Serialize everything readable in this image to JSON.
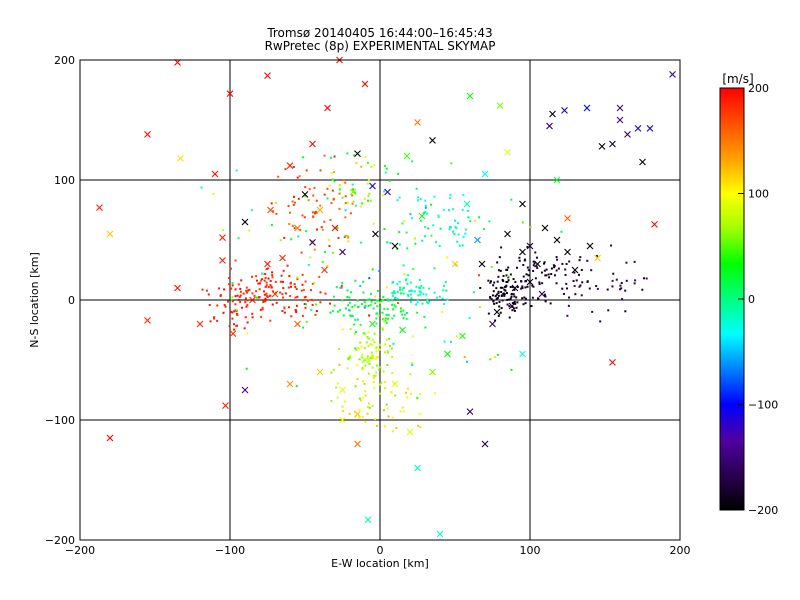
{
  "chart_data": {
    "type": "scatter",
    "title": "Tromsø 20140405 16:44:00–16:45:43",
    "subtitle": "RwPretec (8p) EXPERIMENTAL SKYMAP",
    "xlabel": "E-W location [km]",
    "ylabel": "N-S location [km]",
    "xlim": [
      -200,
      200
    ],
    "ylim": [
      -200,
      200
    ],
    "xticks": [
      "−200",
      "−100",
      "0",
      "100",
      "200"
    ],
    "yticks": [
      "−200",
      "−100",
      "0",
      "100",
      "200"
    ],
    "grid": true,
    "grid_lines": [
      -100,
      0,
      100
    ],
    "markers": [
      "x",
      "dot"
    ],
    "colorbar": {
      "label": "[m/s]",
      "min": -200,
      "max": 200,
      "ticks": [
        "200",
        "100",
        "0",
        "−100",
        "−200"
      ],
      "colormap": [
        "#000000",
        "#2a0050",
        "#5000a0",
        "#0000ff",
        "#0080ff",
        "#00ffff",
        "#00ff80",
        "#00ff00",
        "#a0ff00",
        "#ffff00",
        "#ffa000",
        "#ff5000",
        "#ff0000"
      ]
    },
    "points": [
      {
        "x": -187,
        "y": 77,
        "v": 190,
        "m": "x"
      },
      {
        "x": -180,
        "y": 55,
        "v": 120,
        "m": "x"
      },
      {
        "x": -180,
        "y": -115,
        "v": 200,
        "m": "x"
      },
      {
        "x": -155,
        "y": 138,
        "v": 195,
        "m": "x"
      },
      {
        "x": -155,
        "y": -17,
        "v": 185,
        "m": "x"
      },
      {
        "x": -135,
        "y": 198,
        "v": 200,
        "m": "x"
      },
      {
        "x": -133,
        "y": 118,
        "v": 110,
        "m": "x"
      },
      {
        "x": -135,
        "y": 10,
        "v": 190,
        "m": "x"
      },
      {
        "x": -110,
        "y": 105,
        "v": 195,
        "m": "x"
      },
      {
        "x": -105,
        "y": 52,
        "v": 190,
        "m": "x"
      },
      {
        "x": -105,
        "y": 33,
        "v": 185,
        "m": "x"
      },
      {
        "x": -103,
        "y": -88,
        "v": 190,
        "m": "x"
      },
      {
        "x": -100,
        "y": 172,
        "v": 200,
        "m": "x"
      },
      {
        "x": -98,
        "y": -28,
        "v": 180,
        "m": "x"
      },
      {
        "x": -90,
        "y": 65,
        "v": -200,
        "m": "x"
      },
      {
        "x": -90,
        "y": -75,
        "v": -130,
        "m": "x"
      },
      {
        "x": -75,
        "y": 187,
        "v": 200,
        "m": "x"
      },
      {
        "x": -73,
        "y": 75,
        "v": 170,
        "m": "x"
      },
      {
        "x": -70,
        "y": 5,
        "v": 180,
        "m": "x"
      },
      {
        "x": -65,
        "y": 35,
        "v": 185,
        "m": "x"
      },
      {
        "x": -60,
        "y": 112,
        "v": 190,
        "m": "x"
      },
      {
        "x": -55,
        "y": -20,
        "v": 160,
        "m": "x"
      },
      {
        "x": -50,
        "y": 88,
        "v": -200,
        "m": "x"
      },
      {
        "x": -45,
        "y": 130,
        "v": 195,
        "m": "x"
      },
      {
        "x": -40,
        "y": 75,
        "v": 130,
        "m": "x"
      },
      {
        "x": -37,
        "y": 25,
        "v": 180,
        "m": "x"
      },
      {
        "x": -30,
        "y": 60,
        "v": 200,
        "m": "x"
      },
      {
        "x": -27,
        "y": 200,
        "v": 195,
        "m": "x"
      },
      {
        "x": -25,
        "y": 40,
        "v": -160,
        "m": "x"
      },
      {
        "x": -18,
        "y": 90,
        "v": 60,
        "m": "x"
      },
      {
        "x": -15,
        "y": 122,
        "v": -200,
        "m": "x"
      },
      {
        "x": -10,
        "y": 180,
        "v": 200,
        "m": "x"
      },
      {
        "x": -5,
        "y": 95,
        "v": -100,
        "m": "x"
      },
      {
        "x": -3,
        "y": 55,
        "v": -200,
        "m": "x"
      },
      {
        "x": -25,
        "y": -100,
        "v": 100,
        "m": "x"
      },
      {
        "x": -15,
        "y": -95,
        "v": 120,
        "m": "x"
      },
      {
        "x": -15,
        "y": -120,
        "v": 150,
        "m": "x"
      },
      {
        "x": -8,
        "y": -183,
        "v": -10,
        "m": "x"
      },
      {
        "x": 5,
        "y": 90,
        "v": -120,
        "m": "x"
      },
      {
        "x": 10,
        "y": 45,
        "v": -200,
        "m": "x"
      },
      {
        "x": 18,
        "y": 120,
        "v": 50,
        "m": "x"
      },
      {
        "x": 25,
        "y": -140,
        "v": -20,
        "m": "x"
      },
      {
        "x": 28,
        "y": 70,
        "v": 40,
        "m": "x"
      },
      {
        "x": 35,
        "y": 133,
        "v": -200,
        "m": "x"
      },
      {
        "x": 35,
        "y": -60,
        "v": 60,
        "m": "x"
      },
      {
        "x": 40,
        "y": -195,
        "v": -20,
        "m": "x"
      },
      {
        "x": 50,
        "y": 30,
        "v": 120,
        "m": "x"
      },
      {
        "x": 55,
        "y": -30,
        "v": 40,
        "m": "x"
      },
      {
        "x": 58,
        "y": 80,
        "v": -10,
        "m": "x"
      },
      {
        "x": 60,
        "y": -93,
        "v": -160,
        "m": "x"
      },
      {
        "x": 68,
        "y": 30,
        "v": -200,
        "m": "x"
      },
      {
        "x": 70,
        "y": 105,
        "v": -30,
        "m": "x"
      },
      {
        "x": 70,
        "y": -120,
        "v": -170,
        "m": "x"
      },
      {
        "x": 75,
        "y": -20,
        "v": -150,
        "m": "x"
      },
      {
        "x": 85,
        "y": 123,
        "v": 90,
        "m": "x"
      },
      {
        "x": 85,
        "y": 55,
        "v": -200,
        "m": "x"
      },
      {
        "x": 90,
        "y": 10,
        "v": -190,
        "m": "x"
      },
      {
        "x": 95,
        "y": 80,
        "v": -200,
        "m": "x"
      },
      {
        "x": 95,
        "y": -45,
        "v": -30,
        "m": "x"
      },
      {
        "x": 100,
        "y": 45,
        "v": -180,
        "m": "x"
      },
      {
        "x": 105,
        "y": 30,
        "v": -200,
        "m": "x"
      },
      {
        "x": 113,
        "y": 145,
        "v": -160,
        "m": "x"
      },
      {
        "x": 115,
        "y": 155,
        "v": -200,
        "m": "x"
      },
      {
        "x": 118,
        "y": 50,
        "v": -200,
        "m": "x"
      },
      {
        "x": 118,
        "y": 100,
        "v": 20,
        "m": "x"
      },
      {
        "x": 123,
        "y": 158,
        "v": -100,
        "m": "x"
      },
      {
        "x": 125,
        "y": 68,
        "v": 160,
        "m": "x"
      },
      {
        "x": 138,
        "y": 160,
        "v": -100,
        "m": "x"
      },
      {
        "x": 140,
        "y": 45,
        "v": -200,
        "m": "x"
      },
      {
        "x": 145,
        "y": 35,
        "v": 120,
        "m": "x"
      },
      {
        "x": 148,
        "y": 128,
        "v": -200,
        "m": "x"
      },
      {
        "x": 155,
        "y": 130,
        "v": -180,
        "m": "x"
      },
      {
        "x": 155,
        "y": -52,
        "v": 200,
        "m": "x"
      },
      {
        "x": 160,
        "y": 160,
        "v": -140,
        "m": "x"
      },
      {
        "x": 160,
        "y": 150,
        "v": -140,
        "m": "x"
      },
      {
        "x": 172,
        "y": 143,
        "v": -110,
        "m": "x"
      },
      {
        "x": 180,
        "y": 143,
        "v": -100,
        "m": "x"
      },
      {
        "x": 183,
        "y": 63,
        "v": 200,
        "m": "x"
      },
      {
        "x": 195,
        "y": 188,
        "v": -110,
        "m": "x"
      },
      {
        "x": 175,
        "y": 115,
        "v": -200,
        "m": "x"
      },
      {
        "x": 165,
        "y": 138,
        "v": -160,
        "m": "x"
      },
      {
        "x": 60,
        "y": 170,
        "v": 30,
        "m": "x"
      },
      {
        "x": 80,
        "y": 162,
        "v": 60,
        "m": "x"
      },
      {
        "x": 25,
        "y": 148,
        "v": 150,
        "m": "x"
      },
      {
        "x": -45,
        "y": 48,
        "v": -170,
        "m": "x"
      },
      {
        "x": -55,
        "y": 60,
        "v": 150,
        "m": "x"
      },
      {
        "x": -35,
        "y": 160,
        "v": 200,
        "m": "x"
      },
      {
        "x": -75,
        "y": 30,
        "v": 190,
        "m": "x"
      },
      {
        "x": -85,
        "y": 0,
        "v": 190,
        "m": "x"
      },
      {
        "x": -120,
        "y": -20,
        "v": 185,
        "m": "x"
      },
      {
        "x": -40,
        "y": -60,
        "v": 120,
        "m": "x"
      },
      {
        "x": -25,
        "y": -75,
        "v": 90,
        "m": "x"
      },
      {
        "x": 10,
        "y": -70,
        "v": 90,
        "m": "x"
      },
      {
        "x": 15,
        "y": -25,
        "v": 30,
        "m": "x"
      },
      {
        "x": -10,
        "y": -50,
        "v": 70,
        "m": "x"
      },
      {
        "x": 20,
        "y": -110,
        "v": 90,
        "m": "x"
      },
      {
        "x": 45,
        "y": -45,
        "v": 30,
        "m": "x"
      },
      {
        "x": -60,
        "y": -70,
        "v": 140,
        "m": "x"
      },
      {
        "x": 65,
        "y": 50,
        "v": -60,
        "m": "x"
      },
      {
        "x": 110,
        "y": 60,
        "v": -200,
        "m": "x"
      },
      {
        "x": 95,
        "y": 40,
        "v": -200,
        "m": "x"
      },
      {
        "x": 78,
        "y": -10,
        "v": -200,
        "m": "x"
      },
      {
        "x": 88,
        "y": -5,
        "v": -180,
        "m": "x"
      },
      {
        "x": 100,
        "y": 15,
        "v": -190,
        "m": "x"
      },
      {
        "x": 125,
        "y": 40,
        "v": -200,
        "m": "x"
      },
      {
        "x": 130,
        "y": 25,
        "v": -200,
        "m": "x"
      },
      {
        "x": 108,
        "y": 5,
        "v": -170,
        "m": "x"
      },
      {
        "x": -5,
        "y": -20,
        "v": 40,
        "m": "x"
      }
    ],
    "dot_clusters": [
      {
        "cx": -70,
        "cy": 5,
        "sx": 30,
        "sy": 18,
        "n": 140,
        "v": 185,
        "dv": 15
      },
      {
        "cx": -100,
        "cy": -5,
        "sx": 15,
        "sy": 18,
        "n": 40,
        "v": 190,
        "dv": 10
      },
      {
        "cx": -45,
        "cy": 75,
        "sx": 28,
        "sy": 30,
        "n": 70,
        "v": 165,
        "dv": 30
      },
      {
        "cx": -15,
        "cy": 95,
        "sx": 22,
        "sy": 25,
        "n": 40,
        "v": 60,
        "dv": 70
      },
      {
        "cx": -5,
        "cy": -5,
        "sx": 25,
        "sy": 15,
        "n": 90,
        "v": 20,
        "dv": 25
      },
      {
        "cx": 25,
        "cy": 5,
        "sx": 20,
        "sy": 10,
        "n": 60,
        "v": -15,
        "dv": 20
      },
      {
        "cx": -5,
        "cy": -50,
        "sx": 22,
        "sy": 30,
        "n": 110,
        "v": 75,
        "dv": 25
      },
      {
        "cx": 5,
        "cy": -90,
        "sx": 25,
        "sy": 20,
        "n": 40,
        "v": 110,
        "dv": 20
      },
      {
        "cx": 40,
        "cy": 65,
        "sx": 25,
        "sy": 25,
        "n": 60,
        "v": -20,
        "dv": 40
      },
      {
        "cx": 85,
        "cy": 5,
        "sx": 12,
        "sy": 18,
        "n": 100,
        "v": -190,
        "dv": 10
      },
      {
        "cx": 110,
        "cy": 20,
        "sx": 25,
        "sy": 20,
        "n": 80,
        "v": -180,
        "dv": 20
      },
      {
        "cx": 150,
        "cy": 15,
        "sx": 25,
        "sy": 25,
        "n": 40,
        "v": -165,
        "dv": 25
      },
      {
        "cx": 0,
        "cy": 20,
        "sx": 90,
        "sy": 80,
        "n": 110,
        "v": 40,
        "dv": 120
      }
    ]
  }
}
